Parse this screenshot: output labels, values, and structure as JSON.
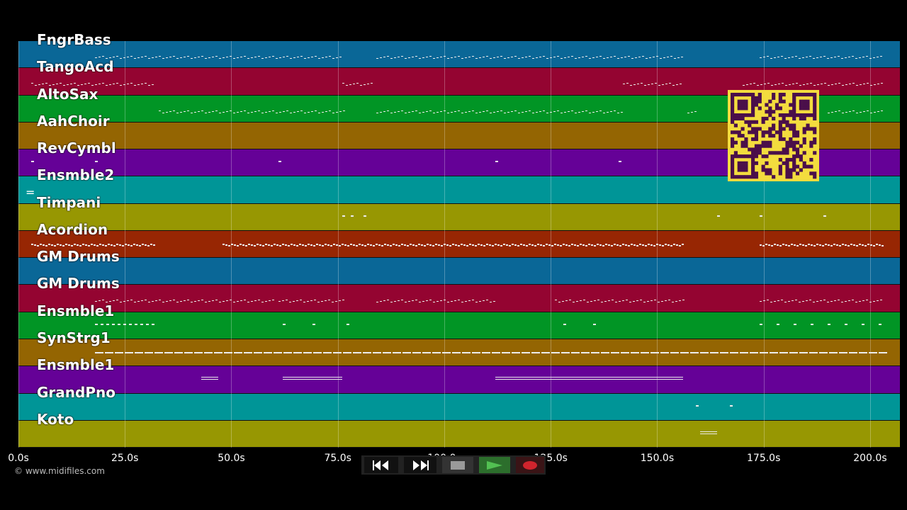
{
  "tracks": [
    {
      "name": "FngrBass",
      "color": "#0a6797"
    },
    {
      "name": "TangoAcd",
      "color": "#940431"
    },
    {
      "name": "AltoSax",
      "color": "#019525"
    },
    {
      "name": "AahChoir",
      "color": "#946502"
    },
    {
      "name": "RevCymbl",
      "color": "#650197"
    },
    {
      "name": "Ensmble2",
      "color": "#009597"
    },
    {
      "name": "Timpani",
      "color": "#979702"
    },
    {
      "name": "Acordion",
      "color": "#972603"
    },
    {
      "name": "GM Drums",
      "color": "#0a6797"
    },
    {
      "name": "GM Drums",
      "color": "#940431"
    },
    {
      "name": "Ensmble1",
      "color": "#019525"
    },
    {
      "name": "SynStrg1",
      "color": "#946502"
    },
    {
      "name": "Ensmble1",
      "color": "#650197"
    },
    {
      "name": "GrandPno",
      "color": "#009597"
    },
    {
      "name": "Koto",
      "color": "#979702"
    }
  ],
  "timeline": {
    "max_seconds": 207,
    "ticks": [
      "0.0s",
      "25.0s",
      "50.0s",
      "75.0s",
      "100.0s",
      "125.0s",
      "150.0s",
      "175.0s",
      "200.0s"
    ]
  },
  "notes": [
    {
      "track": 0,
      "segments": [
        [
          18,
          76
        ],
        [
          84,
          156
        ],
        [
          174,
          203
        ]
      ],
      "style": "dots"
    },
    {
      "track": 1,
      "segments": [
        [
          3,
          32
        ],
        [
          76,
          83
        ],
        [
          142,
          156
        ],
        [
          170,
          203
        ]
      ],
      "style": "dots"
    },
    {
      "track": 2,
      "segments": [
        [
          33,
          77
        ],
        [
          84,
          142
        ],
        [
          157,
          159
        ],
        [
          190,
          203
        ]
      ],
      "style": "dots"
    },
    {
      "track": 4,
      "points": [
        3,
        18,
        61,
        112,
        141
      ]
    },
    {
      "track": 6,
      "points": [
        76,
        78,
        81,
        164,
        174,
        189
      ]
    },
    {
      "track": 7,
      "segments": [
        [
          3,
          32
        ],
        [
          48,
          156
        ],
        [
          174,
          203
        ]
      ],
      "style": "dense"
    },
    {
      "track": 9,
      "segments": [
        [
          18,
          60
        ],
        [
          61,
          76
        ],
        [
          84,
          112
        ],
        [
          126,
          156
        ],
        [
          174,
          203
        ]
      ],
      "style": "dots"
    },
    {
      "track": 10,
      "segments": [
        [
          18,
          32
        ]
      ],
      "style": "dashes",
      "points": [
        62,
        69,
        77,
        128,
        135,
        174,
        178,
        182,
        186,
        190,
        194,
        198,
        202
      ]
    },
    {
      "track": 11,
      "segments": [
        [
          18,
          203
        ]
      ],
      "style": "bar"
    },
    {
      "track": 12,
      "segments": [
        [
          43,
          47
        ],
        [
          62,
          76
        ],
        [
          112,
          156
        ]
      ],
      "style": "line"
    },
    {
      "track": 13,
      "points": [
        159,
        167
      ]
    },
    {
      "track": 14,
      "segments": [
        [
          160,
          164
        ]
      ],
      "style": "line"
    }
  ],
  "footer": {
    "copyright": "© www.midifiles.com"
  },
  "transport": {
    "buttons": [
      "rewind",
      "fast-forward",
      "stop",
      "play",
      "record"
    ],
    "colors": {
      "bar": "#222222",
      "play": "#3a8f3a",
      "record": "#c0232b",
      "stop": "#9a9a9a"
    }
  },
  "qr_colors": {
    "background": "#f3dc3e",
    "modules": "#4a0f4a"
  }
}
